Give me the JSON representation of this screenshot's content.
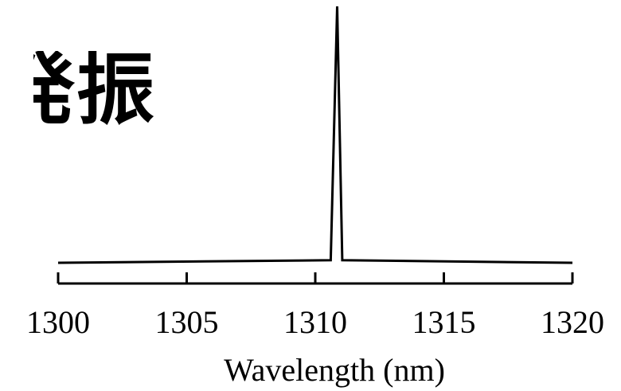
{
  "title": "発振",
  "chart_data": {
    "type": "line",
    "xlabel": "Wavelength (nm)",
    "ylabel": "",
    "xlim": [
      1300,
      1320
    ],
    "ylim": [
      0,
      1
    ],
    "xticks": [
      1300,
      1305,
      1310,
      1315,
      1320
    ],
    "grid": false,
    "line_color": "#000000",
    "series": [
      {
        "x": [
          1300,
          1310.6,
          1310.85,
          1311.05,
          1320
        ],
        "y": [
          0,
          0.01,
          1.0,
          0.01,
          0
        ]
      }
    ]
  }
}
